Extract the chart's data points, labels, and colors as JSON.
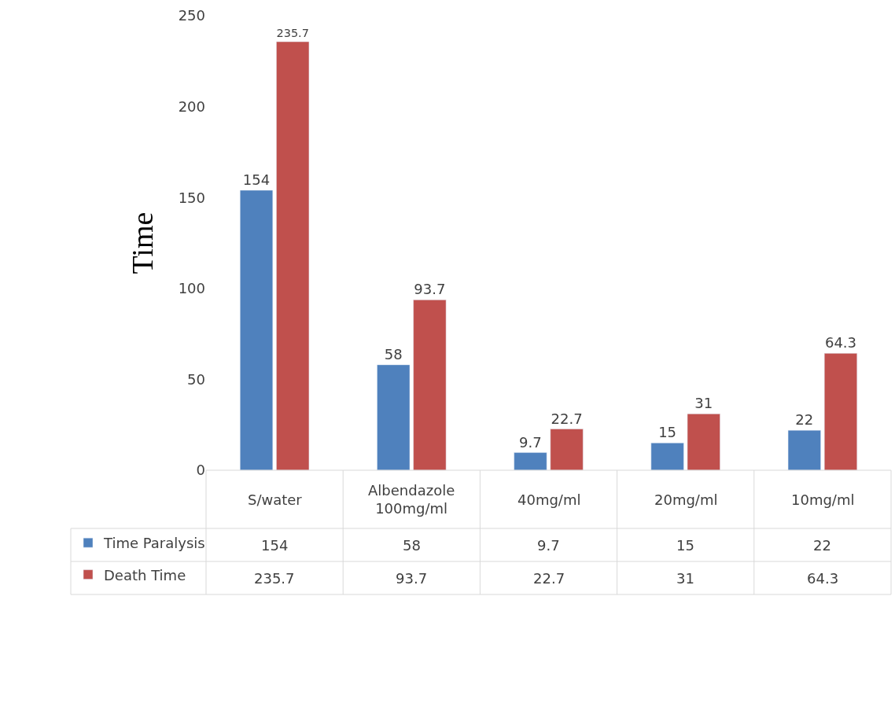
{
  "chart_data": {
    "type": "bar",
    "ylabel": "Time",
    "categories": [
      "S/water",
      "Albendazole\n100mg/ml",
      "40mg/ml",
      "20mg/ml",
      "10mg/ml"
    ],
    "series": [
      {
        "name": "Time Paralysis",
        "color": "#4f81bd",
        "values": [
          154,
          58,
          9.7,
          15,
          22
        ]
      },
      {
        "name": "Death Time",
        "color": "#c0504d",
        "values": [
          235.7,
          93.7,
          22.7,
          31,
          64.3
        ]
      }
    ],
    "annotations": [
      "154",
      "58",
      "9.7",
      "15",
      "22",
      "235.7",
      "93.7",
      "22.7",
      "31",
      "64.3"
    ],
    "ylim": [
      0,
      250
    ],
    "yticks": [
      0,
      50,
      100,
      150,
      200,
      250
    ],
    "grid": false,
    "legend": "bottom left",
    "data_labels": true
  }
}
